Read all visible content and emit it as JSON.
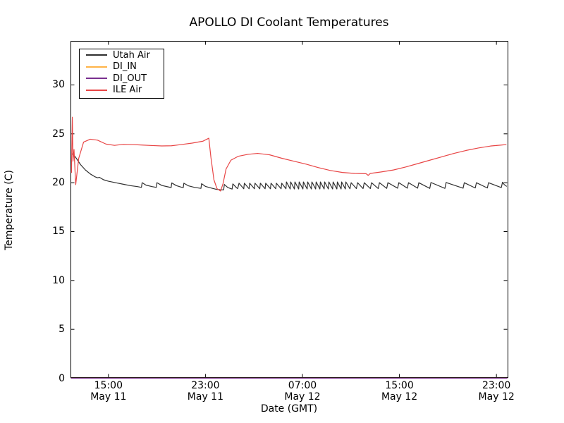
{
  "title": "APOLLO DI Coolant Temperatures",
  "chart_data": {
    "type": "line",
    "title": "APOLLO DI Coolant Temperatures",
    "xlabel": "Date (GMT)",
    "ylabel": "Temperature (C)",
    "x_unit": "hours since May 11 00:00 GMT",
    "xlim": [
      11.9,
      47.95
    ],
    "ylim": [
      0,
      34.47
    ],
    "grid": false,
    "legend_position": "upper left",
    "x_ticks": [
      {
        "hour": 15,
        "time": "15:00",
        "date": "May 11"
      },
      {
        "hour": 23,
        "time": "23:00",
        "date": "May 11"
      },
      {
        "hour": 31,
        "time": "07:00",
        "date": "May 12"
      },
      {
        "hour": 39,
        "time": "15:00",
        "date": "May 12"
      },
      {
        "hour": 47,
        "time": "23:00",
        "date": "May 12"
      }
    ],
    "y_ticks": [
      0,
      5,
      10,
      15,
      20,
      25,
      30
    ],
    "series": [
      {
        "name": "Utah Air",
        "color": "#2f2f2f",
        "points": [
          [
            11.98,
            22.95
          ],
          [
            12.1,
            22.9
          ],
          [
            12.35,
            22.5
          ],
          [
            12.7,
            21.85
          ],
          [
            13.1,
            21.3
          ],
          [
            13.5,
            20.9
          ],
          [
            13.9,
            20.6
          ],
          [
            14.1,
            20.5
          ],
          [
            14.25,
            20.55
          ],
          [
            14.6,
            20.3
          ],
          [
            15.0,
            20.15
          ],
          [
            15.6,
            20.0
          ],
          [
            16.2,
            19.85
          ],
          [
            16.8,
            19.7
          ],
          [
            17.4,
            19.6
          ],
          [
            17.72,
            19.52
          ],
          [
            17.78,
            20.0
          ],
          [
            18.1,
            19.75
          ],
          [
            18.6,
            19.6
          ],
          [
            18.95,
            19.52
          ],
          [
            19.0,
            20.0
          ],
          [
            19.4,
            19.72
          ],
          [
            19.9,
            19.58
          ],
          [
            20.17,
            19.5
          ],
          [
            20.22,
            19.98
          ],
          [
            20.6,
            19.7
          ],
          [
            21.0,
            19.55
          ],
          [
            21.17,
            19.5
          ],
          [
            21.22,
            19.95
          ],
          [
            21.6,
            19.68
          ],
          [
            22.1,
            19.52
          ],
          [
            22.63,
            19.42
          ],
          [
            22.68,
            19.9
          ],
          [
            23.0,
            19.62
          ],
          [
            23.5,
            19.45
          ],
          [
            23.9,
            19.32
          ],
          [
            24.2,
            19.28
          ],
          [
            24.5,
            19.26
          ],
          [
            24.56,
            19.82
          ],
          [
            24.85,
            19.5
          ],
          [
            25.2,
            19.35
          ],
          [
            25.26,
            19.88
          ],
          [
            25.55,
            19.5
          ],
          [
            25.66,
            19.4
          ],
          [
            25.77,
            19.95
          ],
          [
            26.16,
            19.38
          ],
          [
            26.21,
            19.95
          ],
          [
            26.6,
            19.38
          ],
          [
            26.65,
            19.95
          ],
          [
            27.04,
            19.38
          ],
          [
            27.09,
            19.95
          ],
          [
            27.48,
            19.38
          ],
          [
            27.53,
            19.95
          ],
          [
            27.92,
            19.38
          ],
          [
            27.97,
            19.95
          ],
          [
            28.36,
            19.38
          ],
          [
            28.41,
            19.95
          ],
          [
            28.8,
            19.38
          ],
          [
            28.85,
            19.95
          ],
          [
            29.24,
            19.38
          ],
          [
            29.29,
            19.95
          ],
          [
            29.64,
            19.38
          ],
          [
            29.68,
            20.08
          ],
          [
            29.99,
            19.36
          ],
          [
            30.03,
            20.08
          ],
          [
            30.34,
            19.36
          ],
          [
            30.38,
            20.08
          ],
          [
            30.69,
            19.36
          ],
          [
            30.73,
            20.08
          ],
          [
            31.04,
            19.36
          ],
          [
            31.08,
            20.08
          ],
          [
            31.39,
            19.36
          ],
          [
            31.43,
            20.08
          ],
          [
            31.74,
            19.36
          ],
          [
            31.78,
            20.08
          ],
          [
            32.09,
            19.36
          ],
          [
            32.13,
            20.08
          ],
          [
            32.44,
            19.36
          ],
          [
            32.48,
            20.08
          ],
          [
            32.79,
            19.36
          ],
          [
            32.83,
            20.08
          ],
          [
            33.14,
            19.36
          ],
          [
            33.18,
            20.08
          ],
          [
            33.49,
            19.36
          ],
          [
            33.53,
            20.08
          ],
          [
            33.84,
            19.36
          ],
          [
            33.88,
            20.08
          ],
          [
            34.19,
            19.36
          ],
          [
            34.23,
            20.08
          ],
          [
            34.54,
            19.36
          ],
          [
            34.58,
            20.08
          ],
          [
            34.92,
            19.38
          ],
          [
            35.02,
            20.0
          ],
          [
            35.45,
            19.4
          ],
          [
            35.55,
            20.0
          ],
          [
            36.0,
            19.4
          ],
          [
            36.1,
            20.0
          ],
          [
            36.6,
            19.4
          ],
          [
            36.7,
            20.0
          ],
          [
            37.25,
            19.4
          ],
          [
            37.35,
            20.0
          ],
          [
            37.95,
            19.42
          ],
          [
            38.05,
            20.0
          ],
          [
            38.85,
            19.44
          ],
          [
            38.95,
            20.0
          ],
          [
            39.65,
            19.44
          ],
          [
            39.75,
            20.0
          ],
          [
            40.5,
            19.44
          ],
          [
            40.6,
            20.0
          ],
          [
            41.5,
            19.42
          ],
          [
            41.6,
            20.02
          ],
          [
            42.75,
            19.42
          ],
          [
            42.85,
            20.02
          ],
          [
            44.25,
            19.44
          ],
          [
            44.35,
            20.0
          ],
          [
            45.25,
            19.46
          ],
          [
            45.35,
            20.0
          ],
          [
            46.25,
            19.46
          ],
          [
            46.35,
            20.0
          ],
          [
            47.4,
            19.5
          ],
          [
            47.5,
            20.05
          ],
          [
            47.65,
            19.8
          ],
          [
            47.85,
            19.62
          ]
        ]
      },
      {
        "name": "DI_IN",
        "color": "#ffb347",
        "points": [
          [
            11.92,
            0
          ],
          [
            47.9,
            0
          ]
        ]
      },
      {
        "name": "DI_OUT",
        "color": "#7a2f8f",
        "points": [
          [
            11.92,
            0
          ],
          [
            47.9,
            0
          ]
        ]
      },
      {
        "name": "ILE Air",
        "color": "#e84545",
        "points": [
          [
            11.95,
            21.0
          ],
          [
            12.02,
            26.7
          ],
          [
            12.08,
            22.2
          ],
          [
            12.16,
            23.4
          ],
          [
            12.3,
            19.8
          ],
          [
            12.55,
            22.5
          ],
          [
            12.95,
            24.15
          ],
          [
            13.5,
            24.45
          ],
          [
            14.1,
            24.35
          ],
          [
            14.8,
            23.95
          ],
          [
            15.5,
            23.82
          ],
          [
            16.2,
            23.92
          ],
          [
            17.0,
            23.9
          ],
          [
            17.8,
            23.85
          ],
          [
            18.6,
            23.8
          ],
          [
            19.4,
            23.76
          ],
          [
            20.2,
            23.78
          ],
          [
            21.0,
            23.9
          ],
          [
            21.9,
            24.05
          ],
          [
            22.8,
            24.25
          ],
          [
            23.28,
            24.55
          ],
          [
            23.45,
            22.6
          ],
          [
            23.7,
            20.3
          ],
          [
            23.95,
            19.4
          ],
          [
            24.25,
            19.15
          ],
          [
            24.45,
            19.9
          ],
          [
            24.7,
            21.4
          ],
          [
            25.1,
            22.3
          ],
          [
            25.7,
            22.7
          ],
          [
            26.5,
            22.9
          ],
          [
            27.3,
            23.0
          ],
          [
            28.3,
            22.85
          ],
          [
            29.3,
            22.5
          ],
          [
            30.3,
            22.2
          ],
          [
            31.3,
            21.9
          ],
          [
            32.3,
            21.55
          ],
          [
            33.3,
            21.25
          ],
          [
            34.3,
            21.05
          ],
          [
            35.3,
            20.95
          ],
          [
            36.25,
            20.92
          ],
          [
            36.42,
            20.75
          ],
          [
            36.6,
            20.95
          ],
          [
            37.5,
            21.1
          ],
          [
            38.5,
            21.3
          ],
          [
            39.5,
            21.6
          ],
          [
            40.5,
            21.95
          ],
          [
            41.5,
            22.3
          ],
          [
            42.5,
            22.65
          ],
          [
            43.5,
            23.0
          ],
          [
            44.5,
            23.3
          ],
          [
            45.5,
            23.55
          ],
          [
            46.5,
            23.75
          ],
          [
            47.4,
            23.85
          ],
          [
            47.82,
            23.9
          ]
        ]
      }
    ]
  }
}
